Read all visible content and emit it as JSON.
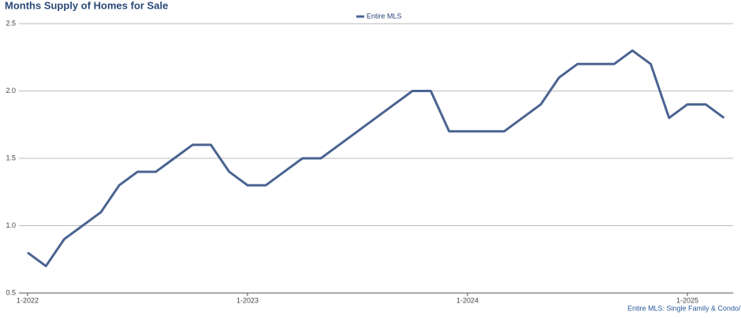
{
  "chart_data": {
    "type": "line",
    "title": "Months Supply of Homes for Sale",
    "footnote": "Entire MLS: Single Family & Condo/Town",
    "categories": [
      "1-2022",
      null,
      null,
      null,
      null,
      null,
      null,
      null,
      null,
      null,
      null,
      null,
      "1-2023",
      null,
      null,
      null,
      null,
      null,
      null,
      null,
      null,
      null,
      null,
      null,
      "1-2024",
      null,
      null,
      null,
      null,
      null,
      null,
      null,
      null,
      null,
      null,
      null,
      "1-2025",
      null,
      null
    ],
    "series": [
      {
        "name": "Entire MLS",
        "color": "#4a6491",
        "values": [
          0.8,
          0.7,
          0.9,
          1.0,
          1.1,
          1.3,
          1.4,
          1.4,
          1.5,
          1.6,
          1.6,
          1.4,
          1.3,
          1.3,
          1.4,
          1.5,
          1.5,
          1.6,
          1.7,
          1.8,
          1.9,
          2.0,
          2.0,
          1.7,
          1.7,
          1.7,
          1.7,
          1.8,
          1.9,
          2.1,
          2.2,
          2.2,
          2.2,
          2.3,
          2.2,
          1.8,
          1.9,
          1.9,
          1.8
        ]
      }
    ],
    "ylim": [
      0.5,
      2.5
    ],
    "yticks": [
      {
        "value": 0.5,
        "label": "0.5"
      },
      {
        "value": 1.0,
        "label": "1.0"
      },
      {
        "value": 1.5,
        "label": "1.5"
      },
      {
        "value": 2.0,
        "label": "2.0"
      },
      {
        "value": 2.5,
        "label": "2.5"
      }
    ],
    "grid": true,
    "legend": "top"
  }
}
